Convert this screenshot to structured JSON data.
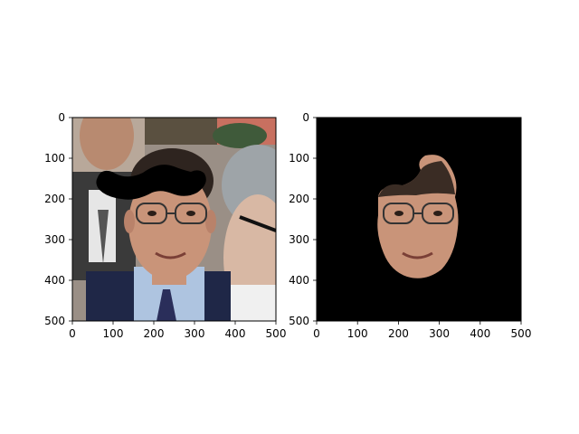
{
  "figure": {
    "panels": [
      {
        "content": "photo of a man in glasses with a black mustache overlay drawn above his head"
      },
      {
        "content": "same image with everything masked to black except the face region"
      }
    ],
    "colors": {
      "background": "#ffffff",
      "mask": "#000000",
      "skin": "#c99479",
      "hair": "#2e241f",
      "suit": "#1f2747",
      "shirt": "#aec4e0"
    }
  },
  "chart_data": [
    {
      "type": "image",
      "title": "",
      "xlabel": "",
      "ylabel": "",
      "xlim": [
        0,
        500
      ],
      "ylim": [
        500,
        0
      ],
      "xticks": [
        0,
        100,
        200,
        300,
        400,
        500
      ],
      "yticks": [
        0,
        100,
        200,
        300,
        400,
        500
      ],
      "grid": false
    },
    {
      "type": "image",
      "title": "",
      "xlabel": "",
      "ylabel": "",
      "xlim": [
        0,
        500
      ],
      "ylim": [
        500,
        0
      ],
      "xticks": [
        0,
        100,
        200,
        300,
        400,
        500
      ],
      "yticks": [
        0,
        100,
        200,
        300,
        400,
        500
      ],
      "grid": false
    }
  ]
}
